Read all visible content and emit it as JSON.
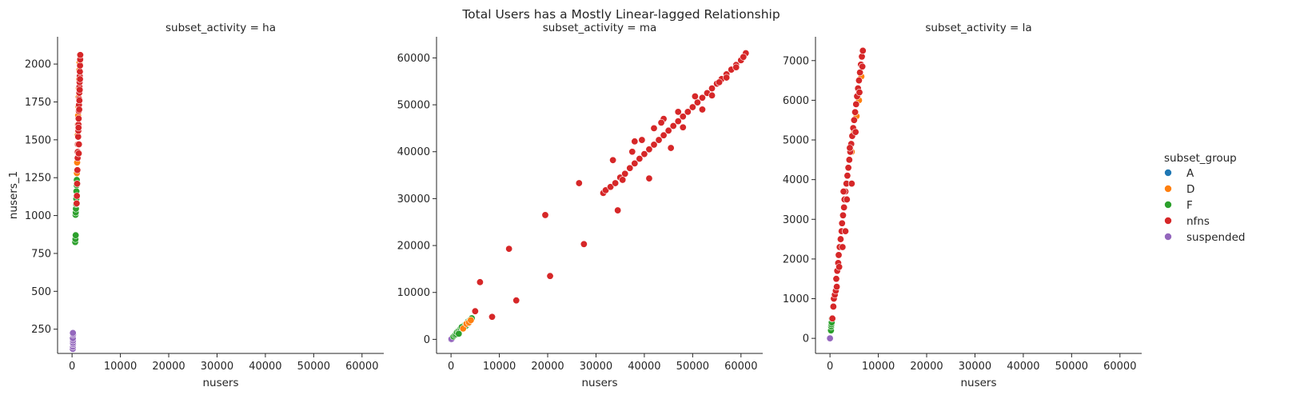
{
  "figure": {
    "title": "Total Users has a Mostly Linear-lagged Relationship"
  },
  "chart_data": {
    "type": "scatter",
    "title": "Total Users has a Mostly Linear-lagged Relationship",
    "xlabel": "nusers",
    "ylabel": "nusers_1",
    "legend": {
      "title": "subset_group",
      "placement": "right",
      "entries": [
        {
          "name": "A",
          "color": "#1f77b4"
        },
        {
          "name": "D",
          "color": "#ff7f0e"
        },
        {
          "name": "F",
          "color": "#2ca02c"
        },
        {
          "name": "nfns",
          "color": "#d62728"
        },
        {
          "name": "suspended",
          "color": "#9467bd"
        }
      ]
    },
    "shared_x": {
      "xlim": [
        -3000,
        64500
      ],
      "xticks": [
        0,
        10000,
        20000,
        30000,
        40000,
        50000,
        60000
      ],
      "xtick_labels": [
        "0",
        "10000",
        "20000",
        "30000",
        "40000",
        "50000",
        "60000"
      ]
    },
    "facets": [
      {
        "title": "subset_activity = ha",
        "ylim": [
          90,
          2180
        ],
        "yticks": [
          250,
          500,
          750,
          1000,
          1250,
          1500,
          1750,
          2000
        ],
        "ytick_labels": [
          "250",
          "500",
          "750",
          "1000",
          "1250",
          "1500",
          "1750",
          "2000"
        ],
        "series": [
          {
            "name": "suspended",
            "points": [
              [
                150,
                120
              ],
              [
                170,
                135
              ],
              [
                200,
                150
              ],
              [
                180,
                160
              ],
              [
                190,
                175
              ],
              [
                160,
                190
              ],
              [
                210,
                215
              ],
              [
                175,
                225
              ]
            ]
          },
          {
            "name": "F",
            "points": [
              [
                650,
                825
              ],
              [
                700,
                845
              ],
              [
                750,
                870
              ],
              [
                720,
                1005
              ],
              [
                760,
                1020
              ],
              [
                800,
                1045
              ],
              [
                840,
                1075
              ],
              [
                880,
                1110
              ],
              [
                900,
                1160
              ],
              [
                950,
                1200
              ],
              [
                980,
                1235
              ]
            ]
          },
          {
            "name": "D",
            "points": [
              [
                1000,
                1280
              ],
              [
                1050,
                1350
              ],
              [
                1080,
                1420
              ],
              [
                1100,
                1470
              ],
              [
                1150,
                1530
              ],
              [
                1200,
                1600
              ],
              [
                1250,
                1660
              ],
              [
                1300,
                1720
              ],
              [
                1350,
                1780
              ],
              [
                1400,
                1840
              ],
              [
                1450,
                1900
              ],
              [
                1500,
                1960
              ],
              [
                1550,
                2010
              ],
              [
                1600,
                2060
              ]
            ]
          },
          {
            "name": "nfns",
            "points": [
              [
                950,
                1080
              ],
              [
                1000,
                1130
              ],
              [
                1050,
                1210
              ],
              [
                1100,
                1300
              ],
              [
                1150,
                1380
              ],
              [
                1180,
                1420
              ],
              [
                1220,
                1470
              ],
              [
                1260,
                1520
              ],
              [
                1300,
                1560
              ],
              [
                1330,
                1600
              ],
              [
                1360,
                1640
              ],
              [
                1400,
                1690
              ],
              [
                1430,
                1730
              ],
              [
                1470,
                1770
              ],
              [
                1500,
                1810
              ],
              [
                1530,
                1850
              ],
              [
                1560,
                1880
              ],
              [
                1590,
                1920
              ],
              [
                1620,
                1950
              ],
              [
                1650,
                1990
              ],
              [
                1680,
                2030
              ],
              [
                1700,
                2060
              ],
              [
                1420,
                1470
              ],
              [
                1380,
                1410
              ],
              [
                1520,
                1760
              ],
              [
                1580,
                1830
              ],
              [
                1640,
                1900
              ],
              [
                1480,
                1700
              ],
              [
                1340,
                1580
              ]
            ]
          }
        ]
      },
      {
        "title": "subset_activity = ma",
        "ylim": [
          -3000,
          64500
        ],
        "yticks": [
          0,
          10000,
          20000,
          30000,
          40000,
          50000,
          60000
        ],
        "ytick_labels": [
          "0",
          "10000",
          "20000",
          "30000",
          "40000",
          "50000",
          "60000"
        ],
        "series": [
          {
            "name": "suspended",
            "points": [
              [
                0,
                0
              ],
              [
                100,
                80
              ]
            ]
          },
          {
            "name": "F",
            "points": [
              [
                500,
                600
              ],
              [
                800,
                900
              ],
              [
                1000,
                1100
              ],
              [
                1200,
                1500
              ],
              [
                1500,
                1800
              ],
              [
                1800,
                2000
              ],
              [
                2000,
                2300
              ],
              [
                2300,
                2500
              ],
              [
                2600,
                2800
              ],
              [
                2800,
                3100
              ],
              [
                3000,
                3200
              ],
              [
                3300,
                3500
              ],
              [
                3500,
                3800
              ],
              [
                3800,
                4000
              ],
              [
                4000,
                4200
              ],
              [
                4300,
                4500
              ],
              [
                1600,
                1200
              ],
              [
                2200,
                2600
              ],
              [
                3100,
                2900
              ],
              [
                3600,
                3400
              ]
            ]
          },
          {
            "name": "D",
            "points": [
              [
                2500,
                2300
              ],
              [
                3200,
                3300
              ],
              [
                3700,
                3600
              ],
              [
                4100,
                4100
              ]
            ]
          },
          {
            "name": "nfns",
            "points": [
              [
                5000,
                6000
              ],
              [
                6000,
                12200
              ],
              [
                8500,
                4800
              ],
              [
                12000,
                19300
              ],
              [
                13500,
                8300
              ],
              [
                19500,
                26500
              ],
              [
                20500,
                13500
              ],
              [
                26500,
                33300
              ],
              [
                27500,
                20300
              ],
              [
                34500,
                27500
              ],
              [
                31500,
                31200
              ],
              [
                32000,
                31800
              ],
              [
                33000,
                32500
              ],
              [
                34000,
                33300
              ],
              [
                35000,
                34500
              ],
              [
                36000,
                35300
              ],
              [
                37000,
                36500
              ],
              [
                38000,
                37500
              ],
              [
                39000,
                38500
              ],
              [
                40000,
                39500
              ],
              [
                41000,
                40500
              ],
              [
                42000,
                41500
              ],
              [
                43000,
                42500
              ],
              [
                44000,
                43500
              ],
              [
                45000,
                44500
              ],
              [
                46000,
                45500
              ],
              [
                47000,
                46500
              ],
              [
                48000,
                47500
              ],
              [
                49000,
                48500
              ],
              [
                50000,
                49500
              ],
              [
                51000,
                50500
              ],
              [
                52000,
                51500
              ],
              [
                53000,
                52500
              ],
              [
                54000,
                53500
              ],
              [
                55000,
                54500
              ],
              [
                56000,
                55500
              ],
              [
                57000,
                56500
              ],
              [
                58000,
                57500
              ],
              [
                59000,
                58500
              ],
              [
                60000,
                59500
              ],
              [
                61000,
                61000
              ],
              [
                60500,
                60200
              ],
              [
                33500,
                38200
              ],
              [
                38000,
                42200
              ],
              [
                37500,
                40000
              ],
              [
                41000,
                34300
              ],
              [
                42000,
                45000
              ],
              [
                44000,
                47000
              ],
              [
                45500,
                40800
              ],
              [
                48000,
                45200
              ],
              [
                52000,
                49000
              ],
              [
                54000,
                52000
              ],
              [
                55500,
                54800
              ],
              [
                57000,
                55800
              ],
              [
                59000,
                58000
              ],
              [
                35500,
                34000
              ],
              [
                39500,
                42500
              ],
              [
                43500,
                46200
              ],
              [
                47000,
                48500
              ],
              [
                50500,
                51800
              ]
            ]
          }
        ]
      },
      {
        "title": "subset_activity = la",
        "ylim": [
          -380,
          7600
        ],
        "yticks": [
          0,
          1000,
          2000,
          3000,
          4000,
          5000,
          6000,
          7000
        ],
        "ytick_labels": [
          "0",
          "1000",
          "2000",
          "3000",
          "4000",
          "5000",
          "6000",
          "7000"
        ],
        "series": [
          {
            "name": "suspended",
            "points": [
              [
                0,
                0
              ]
            ]
          },
          {
            "name": "F",
            "points": [
              [
                200,
                200
              ],
              [
                250,
                300
              ],
              [
                300,
                350
              ],
              [
                350,
                400
              ],
              [
                400,
                500
              ]
            ]
          },
          {
            "name": "D",
            "points": [
              [
                4500,
                4700
              ],
              [
                5000,
                5200
              ],
              [
                5500,
                5600
              ],
              [
                6000,
                6000
              ],
              [
                6500,
                6600
              ]
            ]
          },
          {
            "name": "nfns",
            "points": [
              [
                500,
                500
              ],
              [
                700,
                800
              ],
              [
                800,
                1000
              ],
              [
                1000,
                1100
              ],
              [
                1200,
                1200
              ],
              [
                1300,
                1500
              ],
              [
                1500,
                1700
              ],
              [
                1700,
                1900
              ],
              [
                1800,
                2100
              ],
              [
                2000,
                2300
              ],
              [
                2200,
                2500
              ],
              [
                2400,
                2700
              ],
              [
                2500,
                2900
              ],
              [
                2700,
                3100
              ],
              [
                2900,
                3300
              ],
              [
                3000,
                3500
              ],
              [
                3200,
                3700
              ],
              [
                3400,
                3900
              ],
              [
                3600,
                4100
              ],
              [
                3800,
                4300
              ],
              [
                4000,
                4500
              ],
              [
                4200,
                4700
              ],
              [
                4400,
                4900
              ],
              [
                4600,
                5100
              ],
              [
                4800,
                5300
              ],
              [
                5000,
                5500
              ],
              [
                5200,
                5700
              ],
              [
                5400,
                5900
              ],
              [
                5600,
                6100
              ],
              [
                5800,
                6300
              ],
              [
                6000,
                6500
              ],
              [
                6200,
                6700
              ],
              [
                6400,
                6900
              ],
              [
                6600,
                7100
              ],
              [
                6800,
                7250
              ],
              [
                2800,
                3700
              ],
              [
                3500,
                3500
              ],
              [
                4100,
                4800
              ],
              [
                3200,
                2700
              ],
              [
                4500,
                3900
              ],
              [
                2600,
                2300
              ],
              [
                1900,
                1800
              ],
              [
                1400,
                1300
              ],
              [
                5300,
                5200
              ],
              [
                6100,
                6200
              ],
              [
                6700,
                6850
              ]
            ]
          }
        ]
      }
    ]
  }
}
